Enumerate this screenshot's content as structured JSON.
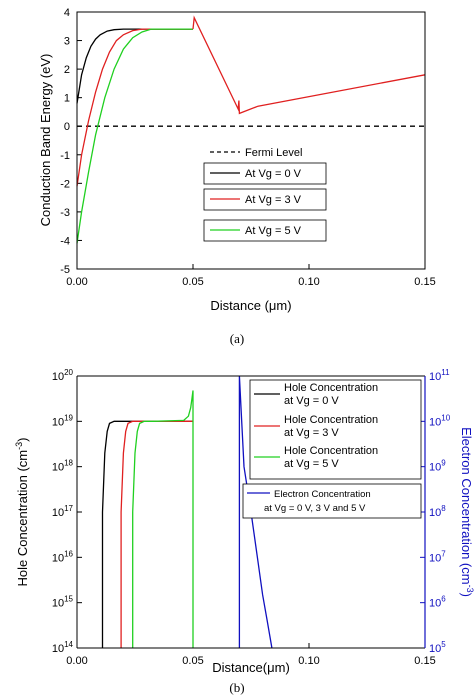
{
  "chart_data": [
    {
      "type": "line",
      "panel_label": "(a)",
      "xlabel_parts": [
        "Distance (",
        "μ",
        "m)"
      ],
      "ylabel": "Conduction Band Energy (eV)",
      "xlim": [
        0,
        0.15
      ],
      "ylim": [
        -5,
        4
      ],
      "xticks": [
        "0.00",
        "0.05",
        "0.10",
        "0.15"
      ],
      "yticks": [
        "-5",
        "-4",
        "-3",
        "-2",
        "-1",
        "0",
        "1",
        "2",
        "3",
        "4"
      ],
      "legend_position": "center",
      "series": [
        {
          "name": "Fermi Level",
          "color": "#000000",
          "dash": true,
          "x": [
            0,
            0.15
          ],
          "y": [
            0,
            0
          ]
        },
        {
          "name": "At Vg = 0 V",
          "color": "#000000",
          "x": [
            0,
            0.002,
            0.004,
            0.006,
            0.008,
            0.01,
            0.013,
            0.016,
            0.02,
            0.05
          ],
          "y": [
            0.8,
            1.8,
            2.4,
            2.8,
            3.05,
            3.2,
            3.33,
            3.38,
            3.4,
            3.4
          ]
        },
        {
          "name": "At Vg = 3 V",
          "color": "#e02020",
          "x": [
            0,
            0.002,
            0.005,
            0.008,
            0.011,
            0.014,
            0.017,
            0.02,
            0.024,
            0.028,
            0.05
          ],
          "y": [
            -2.1,
            -1.0,
            0.2,
            1.2,
            2.0,
            2.6,
            3.0,
            3.2,
            3.35,
            3.4,
            3.4
          ]
        },
        {
          "name": "At Vg = 5 V",
          "color": "#20d020",
          "x": [
            0,
            0.002,
            0.005,
            0.008,
            0.012,
            0.016,
            0.02,
            0.024,
            0.028,
            0.032,
            0.05
          ],
          "y": [
            -4.1,
            -3.0,
            -1.6,
            -0.3,
            1.0,
            2.0,
            2.7,
            3.1,
            3.3,
            3.4,
            3.4
          ]
        },
        {
          "name": "",
          "color": "#e02020",
          "x": [
            0.05,
            0.0505,
            0.0695,
            0.0698,
            0.07,
            0.078,
            0.15
          ],
          "y": [
            3.4,
            3.8,
            0.6,
            0.9,
            0.45,
            0.7,
            1.8
          ]
        }
      ]
    },
    {
      "type": "line",
      "panel_label": "(b)",
      "xlabel_parts": [
        "Distance(",
        "μ",
        "m)"
      ],
      "ylabel_parts": [
        "Hole Concentration (cm",
        "-3",
        ")"
      ],
      "y2label_parts": [
        "Electron Concentration (cm",
        "-3",
        ")"
      ],
      "yscale": "log",
      "y2scale": "log",
      "xlim": [
        0,
        0.15
      ],
      "ylim": [
        100000000000000.0,
        1e+20
      ],
      "y2lim": [
        100000.0,
        100000000000.0
      ],
      "xticks": [
        "0.00",
        "0.05",
        "0.10",
        "0.15"
      ],
      "yticks": [
        {
          "base": "10",
          "exp": "14"
        },
        {
          "base": "10",
          "exp": "15"
        },
        {
          "base": "10",
          "exp": "16"
        },
        {
          "base": "10",
          "exp": "17"
        },
        {
          "base": "10",
          "exp": "18"
        },
        {
          "base": "10",
          "exp": "19"
        },
        {
          "base": "10",
          "exp": "20"
        }
      ],
      "y2ticks": [
        {
          "base": "10",
          "exp": "5"
        },
        {
          "base": "10",
          "exp": "6"
        },
        {
          "base": "10",
          "exp": "7"
        },
        {
          "base": "10",
          "exp": "8"
        },
        {
          "base": "10",
          "exp": "9"
        },
        {
          "base": "10",
          "exp": "10"
        },
        {
          "base": "10",
          "exp": "11"
        }
      ],
      "legend_position": "top-right",
      "series": [
        {
          "name_lines": [
            "Hole Concentration",
            "at Vg = 0 V"
          ],
          "color": "#000000",
          "axis": "left",
          "x": [
            0.011,
            0.011,
            0.012,
            0.013,
            0.014,
            0.016,
            0.018,
            0.02,
            0.05
          ],
          "y": [
            100000000000000.0,
            1e+17,
            2e+18,
            6e+18,
            9e+18,
            1e+19,
            1e+19,
            1e+19,
            1e+19
          ]
        },
        {
          "name_lines": [
            "Hole Concentration",
            "at Vg = 3 V"
          ],
          "color": "#e02020",
          "axis": "left",
          "x": [
            0.019,
            0.019,
            0.02,
            0.021,
            0.022,
            0.024,
            0.026,
            0.028,
            0.05
          ],
          "y": [
            100000000000000.0,
            1e+17,
            2e+18,
            6e+18,
            9e+18,
            1e+19,
            1e+19,
            1e+19,
            1e+19
          ]
        },
        {
          "name_lines": [
            "Hole Concentration",
            "at Vg = 5 V"
          ],
          "color": "#20d020",
          "axis": "left",
          "x": [
            0.024,
            0.024,
            0.025,
            0.026,
            0.027,
            0.029,
            0.031,
            0.033,
            0.046,
            0.048,
            0.049,
            0.0495,
            0.05,
            0.05
          ],
          "y": [
            100000000000000.0,
            1e+17,
            2e+18,
            6e+18,
            9e+18,
            1e+19,
            1e+19,
            1e+19,
            1.05e+19,
            1.3e+19,
            2e+19,
            3e+19,
            4.8e+19,
            100000000000000.0
          ]
        },
        {
          "name_lines": [
            "Electron Concentration",
            "at Vg = 0 V, 3 V and 5 V"
          ],
          "color": "#1010c0",
          "axis": "right",
          "x": [
            0.07,
            0.07,
            0.072,
            0.075,
            0.078,
            0.08,
            0.082,
            0.084
          ],
          "y": [
            100000.0,
            100000000000.0,
            1000000000.0,
            100000000.0,
            8000000.0,
            1500000.0,
            400000.0,
            100000.0
          ]
        }
      ]
    }
  ]
}
